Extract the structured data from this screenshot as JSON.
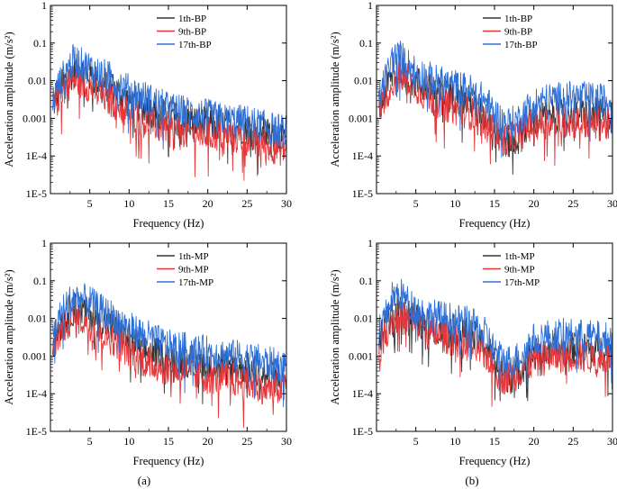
{
  "captions": [
    "(a)",
    "(b)"
  ],
  "colors": {
    "1th": "#333333",
    "9th": "#e8373a",
    "17th": "#2e6fd6"
  },
  "chart_data": [
    {
      "type": "line",
      "panel": "top-left",
      "xlabel": "Frequency (Hz)",
      "ylabel": "Acceleration amplitude (m/s²)",
      "xlim": [
        0,
        30
      ],
      "ylim": [
        1e-05,
        1
      ],
      "yscale": "log",
      "xticks": [
        5,
        10,
        15,
        20,
        25,
        30
      ],
      "yticks": [
        "1E-5",
        "1E-4",
        "0.001",
        "0.01",
        "0.1",
        "1"
      ],
      "legend_position": "top-center",
      "x": [
        0.5,
        1,
        2,
        3,
        4,
        5,
        6,
        8,
        10,
        12,
        15,
        18,
        20,
        22,
        25,
        28,
        30
      ],
      "series": [
        {
          "name": "1th-BP",
          "color": "#333333",
          "values": [
            0.003,
            0.006,
            0.012,
            0.02,
            0.02,
            0.015,
            0.01,
            0.007,
            0.003,
            0.002,
            0.0012,
            0.0009,
            0.0008,
            0.0007,
            0.0006,
            0.0004,
            0.0003
          ]
        },
        {
          "name": "9th-BP",
          "color": "#e8373a",
          "values": [
            0.002,
            0.004,
            0.008,
            0.012,
            0.01,
            0.008,
            0.005,
            0.003,
            0.0015,
            0.0009,
            0.0006,
            0.0005,
            0.0004,
            0.0004,
            0.0003,
            0.0002,
            0.00015
          ]
        },
        {
          "name": "17th-BP",
          "color": "#2e6fd6",
          "values": [
            0.004,
            0.008,
            0.02,
            0.04,
            0.03,
            0.025,
            0.018,
            0.012,
            0.006,
            0.004,
            0.002,
            0.0015,
            0.0013,
            0.001,
            0.0009,
            0.0006,
            0.0005
          ]
        }
      ]
    },
    {
      "type": "line",
      "panel": "top-right",
      "xlabel": "Frequency (Hz)",
      "ylabel": "Acceleration amplitude (m/s²)",
      "xlim": [
        0,
        30
      ],
      "ylim": [
        1e-05,
        1
      ],
      "yscale": "log",
      "xticks": [
        5,
        10,
        15,
        20,
        25,
        30
      ],
      "yticks": [
        "1E-5",
        "1E-4",
        "0.001",
        "0.01",
        "0.1",
        "1"
      ],
      "legend_position": "top-center",
      "x": [
        0.5,
        1,
        2,
        3,
        4,
        5,
        6,
        8,
        10,
        12,
        14,
        15,
        16,
        17,
        18,
        19,
        20,
        22,
        25,
        28,
        30
      ],
      "series": [
        {
          "name": "1th-BP",
          "color": "#333333",
          "values": [
            0.002,
            0.005,
            0.015,
            0.02,
            0.015,
            0.01,
            0.008,
            0.005,
            0.004,
            0.003,
            0.0012,
            0.0006,
            0.0003,
            0.00025,
            0.0003,
            0.0006,
            0.001,
            0.0012,
            0.0015,
            0.0014,
            0.0012
          ]
        },
        {
          "name": "9th-BP",
          "color": "#e8373a",
          "values": [
            0.002,
            0.004,
            0.01,
            0.015,
            0.012,
            0.008,
            0.005,
            0.003,
            0.002,
            0.0015,
            0.0008,
            0.0005,
            0.0003,
            0.0003,
            0.0004,
            0.0006,
            0.0008,
            0.0009,
            0.0009,
            0.0008,
            0.0007
          ]
        },
        {
          "name": "17th-BP",
          "color": "#2e6fd6",
          "values": [
            0.005,
            0.01,
            0.04,
            0.05,
            0.03,
            0.02,
            0.015,
            0.01,
            0.008,
            0.006,
            0.003,
            0.0015,
            0.0009,
            0.0008,
            0.001,
            0.0018,
            0.0028,
            0.0035,
            0.004,
            0.0035,
            0.003
          ]
        }
      ]
    },
    {
      "type": "line",
      "panel": "bottom-left",
      "xlabel": "Frequency (Hz)",
      "ylabel": "Acceleration amplitude (m/s²)",
      "xlim": [
        0,
        30
      ],
      "ylim": [
        1e-05,
        1
      ],
      "yscale": "log",
      "xticks": [
        5,
        10,
        15,
        20,
        25,
        30
      ],
      "yticks": [
        "1E-5",
        "1E-4",
        "0.001",
        "0.01",
        "0.1",
        "1"
      ],
      "legend_position": "top-center",
      "x": [
        0.5,
        1,
        2,
        3,
        4,
        5,
        6,
        8,
        10,
        12,
        15,
        18,
        20,
        22,
        25,
        28,
        30
      ],
      "series": [
        {
          "name": "1th-MP",
          "color": "#333333",
          "values": [
            0.003,
            0.006,
            0.012,
            0.02,
            0.02,
            0.015,
            0.01,
            0.006,
            0.003,
            0.0015,
            0.001,
            0.0008,
            0.0007,
            0.0006,
            0.0005,
            0.0003,
            0.0003
          ]
        },
        {
          "name": "9th-MP",
          "color": "#e8373a",
          "values": [
            0.002,
            0.004,
            0.008,
            0.012,
            0.01,
            0.008,
            0.005,
            0.003,
            0.0015,
            0.0008,
            0.0005,
            0.0004,
            0.0003,
            0.0003,
            0.0002,
            0.00015,
            0.00015
          ]
        },
        {
          "name": "17th-MP",
          "color": "#2e6fd6",
          "values": [
            0.005,
            0.01,
            0.025,
            0.04,
            0.035,
            0.03,
            0.02,
            0.012,
            0.006,
            0.004,
            0.002,
            0.0016,
            0.0014,
            0.0012,
            0.001,
            0.0007,
            0.0006
          ]
        }
      ]
    },
    {
      "type": "line",
      "panel": "bottom-right",
      "xlabel": "Frequency (Hz)",
      "ylabel": "Acceleration amplitude (m/s²)",
      "xlim": [
        0,
        30
      ],
      "ylim": [
        1e-05,
        1
      ],
      "yscale": "log",
      "xticks": [
        5,
        10,
        15,
        20,
        25,
        30
      ],
      "yticks": [
        "1E-5",
        "1E-4",
        "0.001",
        "0.01",
        "0.1",
        "1"
      ],
      "legend_position": "top-center",
      "x": [
        0.5,
        1,
        2,
        3,
        4,
        5,
        6,
        8,
        10,
        12,
        14,
        15,
        16,
        17,
        18,
        19,
        20,
        22,
        25,
        28,
        30
      ],
      "series": [
        {
          "name": "1th-MP",
          "color": "#333333",
          "values": [
            0.003,
            0.006,
            0.015,
            0.02,
            0.015,
            0.01,
            0.008,
            0.006,
            0.005,
            0.004,
            0.002,
            0.0008,
            0.0004,
            0.0003,
            0.0004,
            0.0008,
            0.0012,
            0.0015,
            0.0018,
            0.0016,
            0.0015
          ]
        },
        {
          "name": "9th-MP",
          "color": "#e8373a",
          "values": [
            0.002,
            0.004,
            0.01,
            0.012,
            0.01,
            0.008,
            0.005,
            0.004,
            0.003,
            0.002,
            0.0012,
            0.0005,
            0.0003,
            0.0003,
            0.0004,
            0.0006,
            0.0008,
            0.001,
            0.0012,
            0.001,
            0.001
          ]
        },
        {
          "name": "17th-MP",
          "color": "#2e6fd6",
          "values": [
            0.005,
            0.01,
            0.04,
            0.05,
            0.03,
            0.02,
            0.015,
            0.012,
            0.01,
            0.008,
            0.004,
            0.0015,
            0.0009,
            0.0008,
            0.001,
            0.0018,
            0.003,
            0.004,
            0.004,
            0.0035,
            0.003
          ]
        }
      ]
    }
  ]
}
